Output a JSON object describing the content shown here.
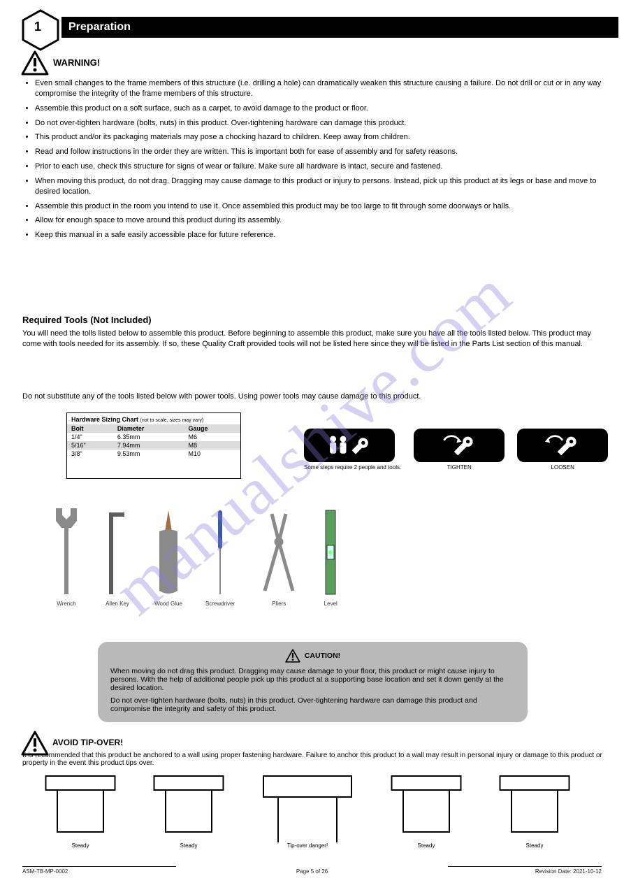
{
  "header": {
    "step_number": "1",
    "title": "Preparation"
  },
  "warnings": {
    "top_label": "WARNING!",
    "bullets": [
      "Even small changes to the frame members of this structure (i.e. drilling a hole) can dramatically weaken this structure causing a failure. Do not drill or cut or in any way compromise the integrity of the frame members of this structure.",
      "Assemble this product on a soft surface, such as a carpet, to avoid damage to the product or floor.",
      "Do not over-tighten hardware (bolts, nuts) in this product. Over-tightening hardware can damage this product.",
      "This product and/or its packaging materials may pose a chocking hazard to children. Keep away from children.",
      "Read and follow instructions in the order they are written. This is important both for ease of assembly and for safety reasons.",
      "Prior to each use, check this structure for signs of wear or failure. Make sure all hardware is intact, secure and fastened.",
      "When moving this product, do not drag. Dragging may cause damage to this product or injury to persons. Instead, pick up this product at its legs or base and move to desired location.",
      "Assemble this product in the room you intend to use it. Once assembled this product may be too large to fit through some doorways or halls.",
      "Allow for enough space to move around this product during its assembly.",
      "Keep this manual in a safe easily accessible place for future reference."
    ]
  },
  "tools_intro": {
    "heading": "Required Tools (Not Included)",
    "para1": "You will need the tolls listed below to assemble this product. Before beginning to assemble this product, make sure you have all the tools listed below. This product may come with tools needed for its assembly. If so, these Quality Craft provided tools will not be listed here since they will be listed in the Parts List section of this manual.",
    "para2": "Do not substitute any of the tools listed below with power tools. Using power tools may cause damage to this product."
  },
  "hardware_box": {
    "title": "Hardware Sizing Chart",
    "note": "(not to scale, sizes may vary)",
    "cols": [
      "Bolt",
      "Diameter",
      "Gauge"
    ],
    "rows": [
      [
        "1/4\"",
        "6.35mm",
        "M6"
      ],
      [
        "5/16\"",
        "7.94mm",
        "M8"
      ],
      [
        "3/8\"",
        "9.53mm",
        "M10"
      ]
    ]
  },
  "instruction_icons": [
    {
      "label": "Some steps require 2 people and tools."
    },
    {
      "label": "TIGHTEN"
    },
    {
      "label": "LOOSEN"
    }
  ],
  "tools": [
    {
      "name": "Wrench",
      "size": 60
    },
    {
      "name": "Allen Key",
      "size": 60
    },
    {
      "name": "Wood Glue",
      "size": 60
    },
    {
      "name": "Screwdriver",
      "size": 60
    },
    {
      "name": "Pliers",
      "size": 60
    },
    {
      "name": "Level",
      "size": 60
    }
  ],
  "caution_box": {
    "label": "CAUTION!",
    "lines": [
      "When moving do not drag this product. Dragging may cause damage to your floor, this product or might cause injury to persons. With the help of additional people pick up this product at a supporting base location and set it down gently at the desired location.",
      "Do not over-tighten hardware (bolts, nuts) in this product. Over-tightening hardware can damage this product and compromise the integrity and safety of this product."
    ]
  },
  "tipover": {
    "label": "AVOID TIP-OVER!",
    "text": "It is recommended that this product be anchored to a wall using proper fastening hardware. Failure to anchor this product to a wall may result in personal injury or damage to this product or property in the event this product tips over.",
    "captions": [
      "Steady",
      "Steady",
      "Tip-over danger!",
      "Steady",
      "Steady"
    ]
  },
  "footer": {
    "left": "ASM-TB-MP-0002",
    "center": "Page 5 of 26",
    "right": "Revision Date: 2021-10-12"
  },
  "colors": {
    "bar": "#000000",
    "shade": "#dcdcdc",
    "caution_bg": "#b9b9b9",
    "tool_gray": "#8a8a8a",
    "tool_dark": "#5c5c5c"
  }
}
